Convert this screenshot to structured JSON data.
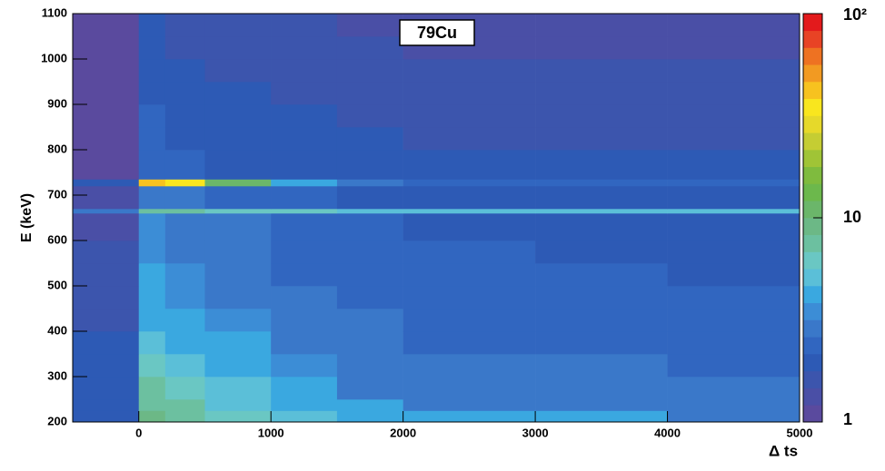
{
  "chart_data": {
    "type": "heatmap",
    "title": "79Cu",
    "x_label": "Δ ts",
    "y_label": "E (keV)",
    "xbins": [
      -500,
      0,
      200,
      500,
      1000,
      1500,
      2000,
      3000,
      4000,
      5000
    ],
    "ybins": [
      200,
      225,
      250,
      300,
      350,
      400,
      450,
      500,
      550,
      600,
      660,
      670,
      720,
      735,
      800,
      850,
      900,
      950,
      1000,
      1050,
      1100
    ],
    "z": [
      [
        2,
        9,
        8,
        6,
        5,
        4,
        4,
        4,
        3
      ],
      [
        2,
        8,
        7,
        5,
        4,
        4,
        3,
        3,
        3
      ],
      [
        2,
        7,
        6,
        5,
        4,
        3,
        3,
        3,
        3
      ],
      [
        1.8,
        6,
        5,
        4,
        3.5,
        3,
        3,
        3,
        2.5
      ],
      [
        1.8,
        5,
        4.5,
        4,
        3,
        3,
        2.5,
        2.5,
        2.5
      ],
      [
        1.7,
        4.5,
        4,
        3.5,
        3,
        2.7,
        2.5,
        2.5,
        2.3
      ],
      [
        1.6,
        4,
        3.5,
        3,
        2.7,
        2.5,
        2.3,
        2.3,
        2.2
      ],
      [
        1.5,
        4,
        3.5,
        3,
        2.6,
        2.4,
        2.2,
        2.2,
        2.1
      ],
      [
        1.5,
        3.5,
        3,
        2.7,
        2.5,
        2.3,
        2.2,
        2.1,
        2
      ],
      [
        1.4,
        3.5,
        3,
        2.7,
        2.4,
        2.2,
        2.1,
        2,
        2
      ],
      [
        3,
        8,
        7,
        6,
        6,
        5,
        5,
        5,
        5
      ],
      [
        1.3,
        3,
        2.7,
        2.4,
        2.2,
        2,
        2,
        1.9,
        1.9
      ],
      [
        2,
        45,
        35,
        12,
        4,
        3,
        2.5,
        2.3,
        2.2
      ],
      [
        1.2,
        2.5,
        2.3,
        2.1,
        2,
        1.9,
        1.8,
        1.8,
        1.8
      ],
      [
        1.2,
        2.3,
        2.1,
        2,
        1.9,
        1.8,
        1.7,
        1.7,
        1.7
      ],
      [
        1.1,
        2.2,
        2,
        1.9,
        1.8,
        1.7,
        1.6,
        1.6,
        1.6
      ],
      [
        1.1,
        2.1,
        1.9,
        1.8,
        1.7,
        1.6,
        1.6,
        1.5,
        1.5
      ],
      [
        1.1,
        2,
        1.8,
        1.7,
        1.6,
        1.5,
        1.5,
        1.5,
        1.5
      ],
      [
        1,
        1.9,
        1.7,
        1.6,
        1.5,
        1.5,
        1.4,
        1.4,
        1.4
      ],
      [
        1,
        1.8,
        1.7,
        1.6,
        1.5,
        1.4,
        1.4,
        1.4,
        1.4
      ]
    ],
    "xlim": [
      -500,
      5000
    ],
    "xticks": [
      0,
      1000,
      2000,
      3000,
      4000,
      5000
    ],
    "ylim": [
      200,
      1100
    ],
    "yticks": [
      200,
      300,
      400,
      500,
      600,
      700,
      800,
      900,
      1000,
      1100
    ],
    "zlim": [
      1,
      100
    ],
    "zticks": [
      1,
      10,
      {
        "value": 100,
        "label": "10²"
      }
    ],
    "zlog": true,
    "palette": [
      "#5a4a9e",
      "#4a4fa6",
      "#3c55ad",
      "#2d5ab5",
      "#3166c0",
      "#3a78c9",
      "#3c8dd6",
      "#3aa8e0",
      "#5bbfd8",
      "#6ac7c3",
      "#6cc0a0",
      "#6cb886",
      "#6bb66a",
      "#6cb84c",
      "#7fbb3e",
      "#a0c436",
      "#c5cd33",
      "#e6d92a",
      "#f9e61e",
      "#f7c21f",
      "#f29a22",
      "#ee7222",
      "#e84325",
      "#e31a1c"
    ]
  }
}
